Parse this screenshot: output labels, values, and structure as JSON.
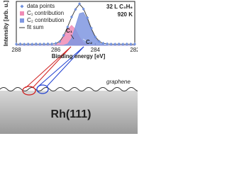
{
  "chart_data": {
    "type": "line",
    "x_label": "Binding energy [eV]",
    "y_label": "Intensity [arb. u.]",
    "annotations": [
      "32 L C₃H₆",
      "920 K",
      "C₁",
      "C₂"
    ],
    "x": [
      288.0,
      287.8,
      287.6,
      287.4,
      287.2,
      287.0,
      286.8,
      286.6,
      286.4,
      286.2,
      286.0,
      285.8,
      285.6,
      285.4,
      285.2,
      285.0,
      284.8,
      284.6,
      284.4,
      284.2,
      284.0,
      283.8,
      283.6,
      283.4,
      283.2,
      283.0,
      282.8,
      282.6,
      282.4,
      282.2,
      282.0
    ],
    "xlim": [
      288,
      282
    ],
    "xticks": [
      288,
      286,
      284,
      282
    ],
    "ylim": [
      0,
      1.1
    ],
    "series": [
      {
        "name": "data points",
        "kind": "scatter",
        "color": "#6f8fdc",
        "values": [
          0.03,
          0.034,
          0.028,
          0.032,
          0.029,
          0.035,
          0.031,
          0.033,
          0.036,
          0.034,
          0.047,
          0.095,
          0.25,
          0.46,
          0.71,
          0.9,
          1.04,
          0.91,
          0.69,
          0.43,
          0.21,
          0.1,
          0.05,
          0.036,
          0.031,
          0.028,
          0.033,
          0.029,
          0.032,
          0.03,
          0.031
        ]
      },
      {
        "name": "C₁ contribution",
        "kind": "area",
        "color": "#f08cb6",
        "values": [
          0,
          0,
          0,
          0,
          0,
          0,
          0,
          0,
          0,
          0.002,
          0.014,
          0.068,
          0.206,
          0.4,
          0.5,
          0.4,
          0.206,
          0.068,
          0.014,
          0.002,
          0,
          0,
          0,
          0,
          0,
          0,
          0,
          0,
          0,
          0,
          0
        ]
      },
      {
        "name": "C₂ contribution",
        "kind": "area",
        "color": "#7f97e0",
        "values": [
          0,
          0,
          0,
          0,
          0,
          0,
          0,
          0,
          0,
          0,
          0,
          0,
          0.005,
          0.037,
          0.173,
          0.479,
          0.797,
          0.824,
          0.642,
          0.389,
          0.184,
          0.068,
          0.019,
          0.004,
          0,
          0,
          0,
          0,
          0,
          0,
          0
        ]
      },
      {
        "name": "fit sum",
        "kind": "line",
        "color": "#333333",
        "values": [
          0.03,
          0.03,
          0.03,
          0.03,
          0.03,
          0.03,
          0.03,
          0.03,
          0.03,
          0.032,
          0.044,
          0.098,
          0.241,
          0.467,
          0.703,
          0.909,
          1.033,
          0.922,
          0.686,
          0.421,
          0.214,
          0.098,
          0.049,
          0.034,
          0.03,
          0.03,
          0.03,
          0.03,
          0.03,
          0.03,
          0.03
        ]
      }
    ]
  },
  "diagram": {
    "layer_label": "graphene",
    "surface_label": "Rh(111)"
  }
}
